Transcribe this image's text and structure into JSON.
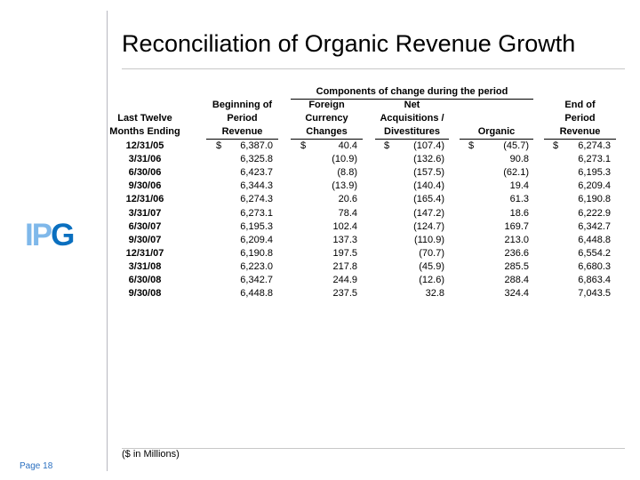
{
  "title": "Reconciliation of Organic Revenue Growth",
  "logo": "IPG",
  "page_label": "Page 18",
  "footnote": "($ in Millions)",
  "colors": {
    "logo_light": "#7fb8ea",
    "logo_dark": "#0a6fbf",
    "page": "#2a6fc0"
  },
  "table": {
    "group_header": "Components of change during the period",
    "headers": [
      [
        "Last Twelve",
        "Months Ending"
      ],
      [
        "Beginning of",
        "Period",
        "Revenue"
      ],
      [
        "Foreign",
        "Currency",
        "Changes"
      ],
      [
        "Net",
        "Acquisitions /",
        "Divestitures"
      ],
      [
        "Organic"
      ],
      [
        "End of",
        "Period",
        "Revenue"
      ]
    ],
    "currency_symbol": "$",
    "rows": [
      [
        "12/31/05",
        "6,387.0",
        "40.4",
        "(107.4)",
        "(45.7)",
        "6,274.3"
      ],
      [
        "3/31/06",
        "6,325.8",
        "(10.9)",
        "(132.6)",
        "90.8",
        "6,273.1"
      ],
      [
        "6/30/06",
        "6,423.7",
        "(8.8)",
        "(157.5)",
        "(62.1)",
        "6,195.3"
      ],
      [
        "9/30/06",
        "6,344.3",
        "(13.9)",
        "(140.4)",
        "19.4",
        "6,209.4"
      ],
      [
        "12/31/06",
        "6,274.3",
        "20.6",
        "(165.4)",
        "61.3",
        "6,190.8"
      ],
      [
        "3/31/07",
        "6,273.1",
        "78.4",
        "(147.2)",
        "18.6",
        "6,222.9"
      ],
      [
        "6/30/07",
        "6,195.3",
        "102.4",
        "(124.7)",
        "169.7",
        "6,342.7"
      ],
      [
        "9/30/07",
        "6,209.4",
        "137.3",
        "(110.9)",
        "213.0",
        "6,448.8"
      ],
      [
        "12/31/07",
        "6,190.8",
        "197.5",
        "(70.7)",
        "236.6",
        "6,554.2"
      ],
      [
        "3/31/08",
        "6,223.0",
        "217.8",
        "(45.9)",
        "285.5",
        "6,680.3"
      ],
      [
        "6/30/08",
        "6,342.7",
        "244.9",
        "(12.6)",
        "288.4",
        "6,863.4"
      ],
      [
        "9/30/08",
        "6,448.8",
        "237.5",
        "32.8",
        "324.4",
        "7,043.5"
      ]
    ]
  }
}
